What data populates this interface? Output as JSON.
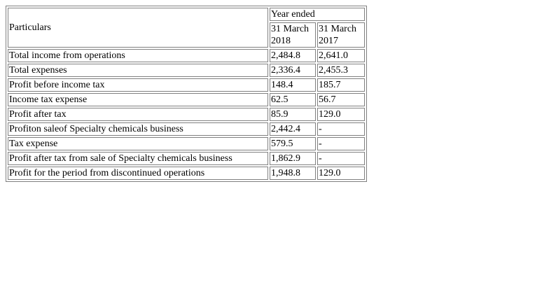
{
  "table": {
    "header": {
      "particulars": "Particulars",
      "period_label": "Year ended",
      "col1": [
        "31 March",
        "2018"
      ],
      "col2": [
        "31 March",
        "2017"
      ]
    },
    "rows": [
      {
        "label": "Total income from operations",
        "v2018": "2,484.8",
        "v2017": "2,641.0"
      },
      {
        "label": "Total expenses",
        "v2018": "2,336.4",
        "v2017": "2,455.3"
      },
      {
        "label": "Profit before income tax",
        "v2018": "148.4",
        "v2017": "185.7"
      },
      {
        "label": "Income tax expense",
        "v2018": "62.5",
        "v2017": "56.7"
      },
      {
        "label": "Profit after tax",
        "v2018": "85.9",
        "v2017": "129.0"
      },
      {
        "label": "Profiton saleof Specialty chemicals business",
        "v2018": "2,442.4",
        "v2017": "-"
      },
      {
        "label": "Tax expense",
        "v2018": "579.5",
        "v2017": "-"
      },
      {
        "label": "Profit after tax from sale of Specialty chemicals business",
        "v2018": "1,862.9",
        "v2017": "-"
      },
      {
        "label": "Profit for the period from discontinued operations",
        "v2018": "1,948.8",
        "v2017": "129.0"
      }
    ]
  }
}
